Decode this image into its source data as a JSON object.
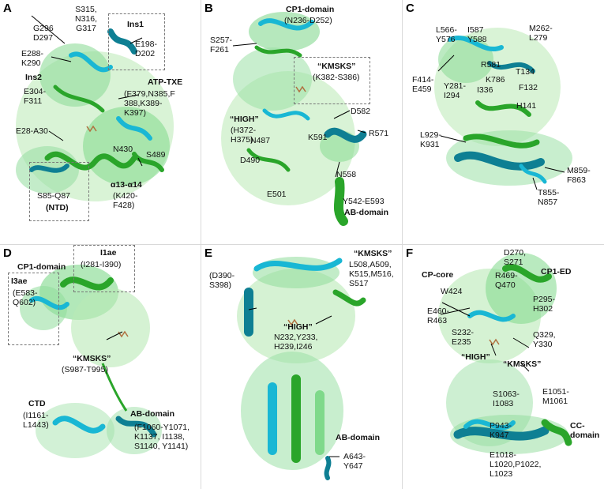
{
  "panels": {
    "A": {
      "letter": "A",
      "labels": {
        "s315": "S315,\nN316,\nG317",
        "g296": "G296\nD297",
        "e288": "E288-\nK290",
        "ins2": "Ins2",
        "e304": "E304-\nF311",
        "ins1": "Ins1",
        "e198": "E198-\nD202",
        "atp": "ATP-TXE",
        "f379": "(F379,N385,F\n388,K389-\nK397)",
        "e28": "E28-A30",
        "n430": "N430",
        "s489": "S489",
        "s85": "S85-Q87",
        "ntd": "(NTD)",
        "a13": "α13-α14",
        "k420": "(K420-\nF428)"
      }
    },
    "B": {
      "letter": "B",
      "labels": {
        "cp1": "CP1-domain",
        "n236": "(N236-D252)",
        "s257": "S257-\nF261",
        "kmsks": "“KMSKS”",
        "k382": "(K382-S386)",
        "d582": "D582",
        "high": "“HIGH”",
        "h372": "(H372-\nH375)",
        "n487": "N487",
        "k591": "K591",
        "r571": "R571",
        "d490": "D490",
        "n558": "N558",
        "e501": "E501",
        "y542": "Y542-E593",
        "ab": "AB-domain"
      }
    },
    "C": {
      "letter": "C",
      "labels": {
        "l566": "L566-\nY576",
        "i587": "I587\nY588",
        "m262": "M262-\nL279",
        "r581": "R581",
        "k786": "K786",
        "t134": "T134",
        "f414": "F414-\nE459",
        "y281": "Y281-\nI294",
        "i336": "I336",
        "f132": "F132",
        "h141": "H141",
        "l929": "L929-\nK931",
        "m859": "M859-\nF863",
        "t855": "T855-\nN857"
      }
    },
    "D": {
      "letter": "D",
      "labels": {
        "i1ae": "I1ae",
        "i281": "(I281-I390)",
        "cp1": "CP1-domain",
        "i3ae": "I3ae",
        "e583": "(E583-\nQ602)",
        "kmsks": "“KMSKS”",
        "s987": "(S987-T995)",
        "ctd": "CTD",
        "i1161": "(I1161-\nL1443)",
        "ab": "AB-domain",
        "f1060": "(F1060-Y1071,\nK1137, I1138,\nS1140, Y1141)"
      }
    },
    "E": {
      "letter": "E",
      "labels": {
        "kmsks": "“KMSKS”",
        "l508": "L508,A509,\nK515,M516,\nS517",
        "d390": "(D390-\nS398)",
        "high": "“HIGH”",
        "n232": "N232,Y233,\nH239,I246",
        "ab": "AB-domain",
        "a643": "A643-\nY647"
      }
    },
    "F": {
      "letter": "F",
      "labels": {
        "d270": "D270,\nS271",
        "cpcore": "CP-core",
        "cped": "CP1-ED",
        "r469": "R469-\nQ470",
        "w424": "W424",
        "p295": "P295-\nH302",
        "e460": "E460-\nR463",
        "s232": "S232-\nE235",
        "q329": "Q329,\nY330",
        "high": "“HIGH”",
        "kmsks": "“KMSKS”",
        "s1063": "S1063-\nI1083",
        "e1051": "E1051-\nM1061",
        "p943": "P943-\nK947",
        "cc": "CC-\ndomain",
        "e1018": "E1018-\nL1020,P1022,\nL1023"
      }
    }
  },
  "colors": {
    "green": "#2aa52a",
    "light_green": "#7fd98a",
    "cyan": "#19b7d4",
    "dark_teal": "#0e7f93",
    "pale_green": "#b9e9b5"
  }
}
